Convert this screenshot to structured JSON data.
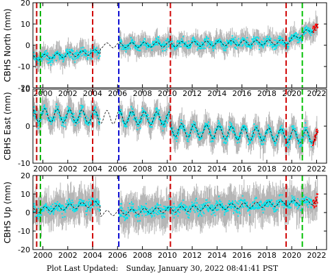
{
  "chart_data": {
    "type": "scatter",
    "x_ticks": [
      2000,
      2002,
      2004,
      2006,
      2008,
      2010,
      2012,
      2014,
      2016,
      2018,
      2020,
      2022
    ],
    "xlim": [
      1999.2,
      2022.8
    ],
    "markers": [
      {
        "x": 1999.5,
        "color": "#c00000",
        "style": "dashed"
      },
      {
        "x": 1999.8,
        "color": "#00b000",
        "style": "dashed"
      },
      {
        "x": 2004.0,
        "color": "#d00000",
        "style": "dashed"
      },
      {
        "x": 2006.1,
        "color": "#0000d0",
        "style": "dashed"
      },
      {
        "x": 2010.25,
        "color": "#d00000",
        "style": "dashed"
      },
      {
        "x": 2019.55,
        "color": "#d00000",
        "style": "dashed"
      },
      {
        "x": 2020.85,
        "color": "#00c000",
        "style": "dashed"
      }
    ],
    "data_gap": [
      2004.6,
      2006.1
    ],
    "panels": [
      {
        "ylabel": "CBHS North  (mm)",
        "ylim": [
          -20,
          20
        ],
        "yticks": [
          -20,
          -10,
          0,
          10,
          20
        ],
        "model": {
          "start": -6,
          "end_pre_2020": 1.5,
          "end": 9,
          "amp": 1.2,
          "jump_at_gap": 3
        },
        "scatter": 4,
        "error": 4
      },
      {
        "ylabel": "CBHS East  (mm)",
        "ylim": [
          -10,
          10
        ],
        "yticks": [
          -10,
          0,
          10
        ],
        "model": {
          "start": 3,
          "end_pre_2010": 2,
          "end": -3,
          "amp": 1.8,
          "jump_2010": -3
        },
        "scatter": 2.5,
        "error": 3
      },
      {
        "ylabel": "CBHS Up  (mm)",
        "ylim": [
          -20,
          20
        ],
        "yticks": [
          -20,
          -10,
          0,
          10,
          20
        ],
        "model": {
          "start": 1,
          "mid": 5,
          "end": 6,
          "amp": 1.5,
          "jump_at_gap": -5
        },
        "scatter": 6,
        "error": 8
      }
    ],
    "colors": {
      "data": "#00e5ee",
      "error": "#b4b4b4",
      "model": "#000000",
      "recent": "#ff0000"
    }
  },
  "footer": {
    "label": "Plot Last Updated:",
    "value": "Sunday, January 30, 2022 08:41:41 PST"
  }
}
